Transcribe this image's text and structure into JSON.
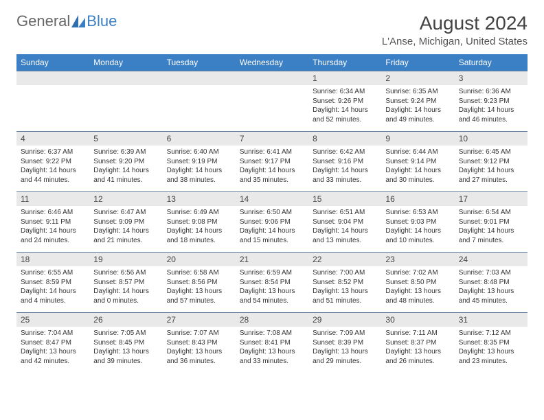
{
  "logo": {
    "text1": "General",
    "text2": "Blue"
  },
  "title": "August 2024",
  "location": "L'Anse, Michigan, United States",
  "colors": {
    "header_bg": "#3b7fc4",
    "header_text": "#ffffff",
    "daynum_bg": "#e9e9e9",
    "row_border": "#5a7aa0",
    "body_bg": "#ffffff",
    "text": "#333333"
  },
  "weekdays": [
    "Sunday",
    "Monday",
    "Tuesday",
    "Wednesday",
    "Thursday",
    "Friday",
    "Saturday"
  ],
  "weeks": [
    [
      null,
      null,
      null,
      null,
      {
        "d": "1",
        "sr": "6:34 AM",
        "ss": "9:26 PM",
        "dl": "14 hours and 52 minutes."
      },
      {
        "d": "2",
        "sr": "6:35 AM",
        "ss": "9:24 PM",
        "dl": "14 hours and 49 minutes."
      },
      {
        "d": "3",
        "sr": "6:36 AM",
        "ss": "9:23 PM",
        "dl": "14 hours and 46 minutes."
      }
    ],
    [
      {
        "d": "4",
        "sr": "6:37 AM",
        "ss": "9:22 PM",
        "dl": "14 hours and 44 minutes."
      },
      {
        "d": "5",
        "sr": "6:39 AM",
        "ss": "9:20 PM",
        "dl": "14 hours and 41 minutes."
      },
      {
        "d": "6",
        "sr": "6:40 AM",
        "ss": "9:19 PM",
        "dl": "14 hours and 38 minutes."
      },
      {
        "d": "7",
        "sr": "6:41 AM",
        "ss": "9:17 PM",
        "dl": "14 hours and 35 minutes."
      },
      {
        "d": "8",
        "sr": "6:42 AM",
        "ss": "9:16 PM",
        "dl": "14 hours and 33 minutes."
      },
      {
        "d": "9",
        "sr": "6:44 AM",
        "ss": "9:14 PM",
        "dl": "14 hours and 30 minutes."
      },
      {
        "d": "10",
        "sr": "6:45 AM",
        "ss": "9:12 PM",
        "dl": "14 hours and 27 minutes."
      }
    ],
    [
      {
        "d": "11",
        "sr": "6:46 AM",
        "ss": "9:11 PM",
        "dl": "14 hours and 24 minutes."
      },
      {
        "d": "12",
        "sr": "6:47 AM",
        "ss": "9:09 PM",
        "dl": "14 hours and 21 minutes."
      },
      {
        "d": "13",
        "sr": "6:49 AM",
        "ss": "9:08 PM",
        "dl": "14 hours and 18 minutes."
      },
      {
        "d": "14",
        "sr": "6:50 AM",
        "ss": "9:06 PM",
        "dl": "14 hours and 15 minutes."
      },
      {
        "d": "15",
        "sr": "6:51 AM",
        "ss": "9:04 PM",
        "dl": "14 hours and 13 minutes."
      },
      {
        "d": "16",
        "sr": "6:53 AM",
        "ss": "9:03 PM",
        "dl": "14 hours and 10 minutes."
      },
      {
        "d": "17",
        "sr": "6:54 AM",
        "ss": "9:01 PM",
        "dl": "14 hours and 7 minutes."
      }
    ],
    [
      {
        "d": "18",
        "sr": "6:55 AM",
        "ss": "8:59 PM",
        "dl": "14 hours and 4 minutes."
      },
      {
        "d": "19",
        "sr": "6:56 AM",
        "ss": "8:57 PM",
        "dl": "14 hours and 0 minutes."
      },
      {
        "d": "20",
        "sr": "6:58 AM",
        "ss": "8:56 PM",
        "dl": "13 hours and 57 minutes."
      },
      {
        "d": "21",
        "sr": "6:59 AM",
        "ss": "8:54 PM",
        "dl": "13 hours and 54 minutes."
      },
      {
        "d": "22",
        "sr": "7:00 AM",
        "ss": "8:52 PM",
        "dl": "13 hours and 51 minutes."
      },
      {
        "d": "23",
        "sr": "7:02 AM",
        "ss": "8:50 PM",
        "dl": "13 hours and 48 minutes."
      },
      {
        "d": "24",
        "sr": "7:03 AM",
        "ss": "8:48 PM",
        "dl": "13 hours and 45 minutes."
      }
    ],
    [
      {
        "d": "25",
        "sr": "7:04 AM",
        "ss": "8:47 PM",
        "dl": "13 hours and 42 minutes."
      },
      {
        "d": "26",
        "sr": "7:05 AM",
        "ss": "8:45 PM",
        "dl": "13 hours and 39 minutes."
      },
      {
        "d": "27",
        "sr": "7:07 AM",
        "ss": "8:43 PM",
        "dl": "13 hours and 36 minutes."
      },
      {
        "d": "28",
        "sr": "7:08 AM",
        "ss": "8:41 PM",
        "dl": "13 hours and 33 minutes."
      },
      {
        "d": "29",
        "sr": "7:09 AM",
        "ss": "8:39 PM",
        "dl": "13 hours and 29 minutes."
      },
      {
        "d": "30",
        "sr": "7:11 AM",
        "ss": "8:37 PM",
        "dl": "13 hours and 26 minutes."
      },
      {
        "d": "31",
        "sr": "7:12 AM",
        "ss": "8:35 PM",
        "dl": "13 hours and 23 minutes."
      }
    ]
  ],
  "labels": {
    "sunrise": "Sunrise:",
    "sunset": "Sunset:",
    "daylight": "Daylight:"
  }
}
